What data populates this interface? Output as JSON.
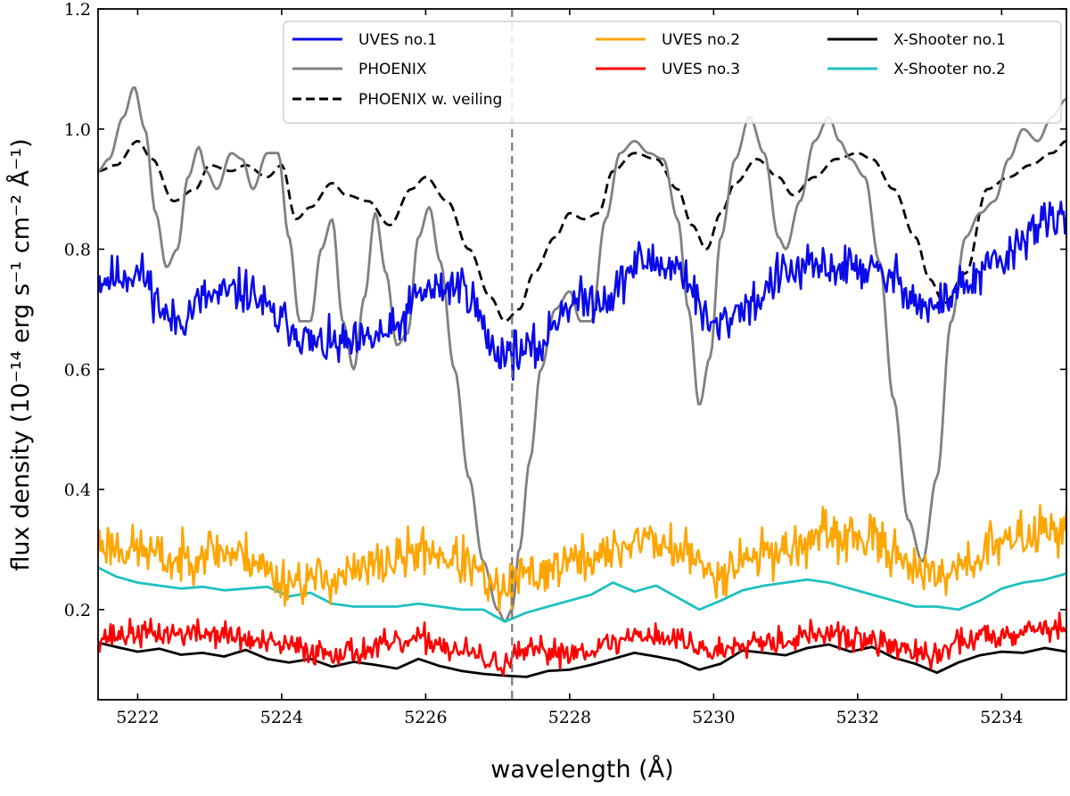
{
  "chart_data": {
    "type": "line",
    "xlabel": "wavelength (Å)",
    "ylabel": "flux density (10⁻¹⁴ erg s⁻¹ cm⁻² Å⁻¹)",
    "xlim": [
      5221.45,
      5234.9
    ],
    "ylim": [
      0.05,
      1.2
    ],
    "xticks": [
      5222,
      5224,
      5226,
      5228,
      5230,
      5232,
      5234
    ],
    "yticks": [
      0.2,
      0.4,
      0.6,
      0.8,
      1.0,
      1.2
    ],
    "ytick_labels": [
      "0.2",
      "0.4",
      "0.6",
      "0.8",
      "1.0",
      "1.2"
    ],
    "vline": {
      "x": 5227.2,
      "color": "#777777",
      "style": "dashed"
    },
    "legend": {
      "placement": "top-right",
      "columns": 3
    },
    "series": [
      {
        "name": "UVES no.1",
        "color": "#0a0aeb",
        "style": "solid",
        "noise": 0.028,
        "seed": 11,
        "x": [
          5221.45,
          5222.0,
          5222.5,
          5223.0,
          5223.5,
          5224.0,
          5224.5,
          5225.0,
          5225.5,
          5226.0,
          5226.5,
          5227.0,
          5227.5,
          5228.0,
          5228.5,
          5229.0,
          5229.5,
          5230.0,
          5230.5,
          5231.0,
          5231.5,
          5232.0,
          5232.5,
          5233.0,
          5233.5,
          5234.0,
          5234.5,
          5234.9
        ],
        "y": [
          0.75,
          0.76,
          0.68,
          0.72,
          0.73,
          0.68,
          0.64,
          0.64,
          0.66,
          0.73,
          0.74,
          0.63,
          0.63,
          0.71,
          0.72,
          0.78,
          0.77,
          0.67,
          0.71,
          0.76,
          0.77,
          0.77,
          0.75,
          0.7,
          0.74,
          0.78,
          0.84,
          0.85
        ]
      },
      {
        "name": "UVES no.2",
        "color": "#ffa500",
        "style": "solid",
        "noise": 0.03,
        "seed": 23,
        "x": [
          5221.45,
          5222.0,
          5222.5,
          5223.0,
          5223.5,
          5224.0,
          5224.5,
          5225.0,
          5225.5,
          5226.0,
          5226.5,
          5227.0,
          5227.5,
          5228.0,
          5228.5,
          5229.0,
          5229.5,
          5230.0,
          5230.5,
          5231.0,
          5231.5,
          5232.0,
          5232.5,
          5233.0,
          5233.5,
          5234.0,
          5234.5,
          5234.9
        ],
        "y": [
          0.31,
          0.3,
          0.28,
          0.3,
          0.29,
          0.25,
          0.25,
          0.26,
          0.28,
          0.3,
          0.28,
          0.23,
          0.26,
          0.28,
          0.29,
          0.32,
          0.3,
          0.26,
          0.29,
          0.3,
          0.32,
          0.32,
          0.3,
          0.25,
          0.28,
          0.31,
          0.33,
          0.34
        ]
      },
      {
        "name": "UVES no.3",
        "color": "#ff0000",
        "style": "solid",
        "noise": 0.017,
        "seed": 37,
        "x": [
          5221.45,
          5222.0,
          5223.0,
          5224.0,
          5224.5,
          5225.0,
          5225.5,
          5226.0,
          5226.5,
          5227.0,
          5227.5,
          5228.0,
          5228.5,
          5229.0,
          5229.5,
          5230.0,
          5230.5,
          5231.0,
          5231.5,
          5232.0,
          5232.5,
          5233.0,
          5233.5,
          5234.0,
          5234.5,
          5234.9
        ],
        "y": [
          0.155,
          0.16,
          0.16,
          0.14,
          0.13,
          0.13,
          0.14,
          0.15,
          0.13,
          0.11,
          0.13,
          0.13,
          0.14,
          0.16,
          0.15,
          0.13,
          0.15,
          0.15,
          0.16,
          0.15,
          0.14,
          0.12,
          0.15,
          0.16,
          0.17,
          0.17
        ]
      },
      {
        "name": "X-Shooter no.1",
        "color": "#000000",
        "style": "solid",
        "noise": 0,
        "seed": 0,
        "x": [
          5221.45,
          5221.7,
          5222.0,
          5222.3,
          5222.6,
          5222.9,
          5223.2,
          5223.5,
          5223.8,
          5224.1,
          5224.4,
          5224.7,
          5225.0,
          5225.3,
          5225.6,
          5225.9,
          5226.2,
          5226.5,
          5226.8,
          5227.1,
          5227.4,
          5227.7,
          5228.0,
          5228.3,
          5228.6,
          5228.9,
          5229.2,
          5229.5,
          5229.8,
          5230.1,
          5230.4,
          5230.7,
          5231.0,
          5231.3,
          5231.6,
          5231.9,
          5232.2,
          5232.5,
          5232.8,
          5233.1,
          5233.4,
          5233.7,
          5234.0,
          5234.3,
          5234.6,
          5234.9
        ],
        "y": [
          0.145,
          0.138,
          0.13,
          0.135,
          0.125,
          0.128,
          0.122,
          0.133,
          0.118,
          0.112,
          0.118,
          0.105,
          0.113,
          0.108,
          0.102,
          0.118,
          0.106,
          0.098,
          0.093,
          0.09,
          0.088,
          0.098,
          0.1,
          0.108,
          0.118,
          0.128,
          0.122,
          0.115,
          0.1,
          0.11,
          0.132,
          0.128,
          0.124,
          0.136,
          0.142,
          0.13,
          0.138,
          0.12,
          0.11,
          0.095,
          0.112,
          0.124,
          0.13,
          0.128,
          0.136,
          0.13
        ]
      },
      {
        "name": "X-Shooter no.2",
        "color": "#20c0c0",
        "style": "solid",
        "noise": 0,
        "seed": 0,
        "x": [
          5221.45,
          5221.7,
          5222.0,
          5222.3,
          5222.6,
          5222.9,
          5223.2,
          5223.5,
          5223.8,
          5224.1,
          5224.4,
          5224.7,
          5225.0,
          5225.3,
          5225.6,
          5225.9,
          5226.2,
          5226.5,
          5226.8,
          5227.1,
          5227.4,
          5227.7,
          5228.0,
          5228.3,
          5228.6,
          5228.9,
          5229.2,
          5229.5,
          5229.8,
          5230.1,
          5230.4,
          5230.7,
          5231.0,
          5231.3,
          5231.6,
          5231.9,
          5232.2,
          5232.5,
          5232.8,
          5233.1,
          5233.4,
          5233.7,
          5234.0,
          5234.3,
          5234.6,
          5234.9
        ],
        "y": [
          0.27,
          0.255,
          0.245,
          0.24,
          0.235,
          0.238,
          0.232,
          0.235,
          0.238,
          0.222,
          0.228,
          0.21,
          0.205,
          0.205,
          0.205,
          0.21,
          0.205,
          0.2,
          0.2,
          0.18,
          0.195,
          0.205,
          0.215,
          0.225,
          0.245,
          0.23,
          0.24,
          0.22,
          0.2,
          0.215,
          0.232,
          0.24,
          0.245,
          0.25,
          0.245,
          0.235,
          0.225,
          0.215,
          0.205,
          0.205,
          0.2,
          0.215,
          0.235,
          0.245,
          0.25,
          0.26
        ]
      },
      {
        "name": "PHOENIX",
        "color": "#808080",
        "style": "solid",
        "noise": 0,
        "seed": 0,
        "x": [
          5221.45,
          5221.6,
          5221.8,
          5221.95,
          5222.1,
          5222.25,
          5222.4,
          5222.55,
          5222.7,
          5222.85,
          5222.95,
          5223.1,
          5223.3,
          5223.45,
          5223.6,
          5223.8,
          5223.95,
          5224.1,
          5224.25,
          5224.4,
          5224.55,
          5224.7,
          5224.85,
          5225.0,
          5225.15,
          5225.3,
          5225.45,
          5225.6,
          5225.75,
          5225.9,
          5226.05,
          5226.2,
          5226.4,
          5226.6,
          5226.8,
          5227.0,
          5227.1,
          5227.2,
          5227.3,
          5227.45,
          5227.6,
          5227.8,
          5228.0,
          5228.15,
          5228.3,
          5228.5,
          5228.7,
          5228.9,
          5229.1,
          5229.3,
          5229.5,
          5229.65,
          5229.8,
          5229.95,
          5230.1,
          5230.3,
          5230.5,
          5230.7,
          5230.9,
          5231.0,
          5231.2,
          5231.4,
          5231.6,
          5231.75,
          5231.9,
          5232.1,
          5232.3,
          5232.5,
          5232.7,
          5232.9,
          5233.1,
          5233.3,
          5233.5,
          5233.7,
          5233.9,
          5234.1,
          5234.3,
          5234.5,
          5234.7,
          5234.9
        ],
        "y": [
          0.93,
          0.95,
          1.02,
          1.07,
          1.0,
          0.86,
          0.77,
          0.8,
          0.92,
          0.97,
          0.93,
          0.9,
          0.96,
          0.95,
          0.9,
          0.96,
          0.96,
          0.82,
          0.68,
          0.68,
          0.8,
          0.85,
          0.68,
          0.6,
          0.72,
          0.86,
          0.76,
          0.64,
          0.66,
          0.82,
          0.87,
          0.78,
          0.6,
          0.42,
          0.28,
          0.2,
          0.18,
          0.2,
          0.3,
          0.45,
          0.6,
          0.7,
          0.73,
          0.68,
          0.68,
          0.85,
          0.96,
          0.98,
          0.96,
          0.95,
          0.85,
          0.7,
          0.54,
          0.62,
          0.82,
          0.95,
          1.02,
          0.96,
          0.82,
          0.8,
          0.88,
          0.98,
          1.02,
          0.98,
          0.95,
          0.92,
          0.78,
          0.55,
          0.35,
          0.28,
          0.42,
          0.68,
          0.82,
          0.86,
          0.88,
          0.95,
          1.0,
          0.98,
          1.02,
          1.05
        ]
      },
      {
        "name": "PHOENIX w. veiling",
        "color": "#000000",
        "style": "dashed",
        "noise": 0,
        "seed": 0,
        "x": [
          5221.45,
          5221.7,
          5222.0,
          5222.2,
          5222.5,
          5222.8,
          5223.0,
          5223.3,
          5223.5,
          5223.8,
          5224.0,
          5224.2,
          5224.4,
          5224.7,
          5224.9,
          5225.2,
          5225.5,
          5225.8,
          5226.0,
          5226.3,
          5226.6,
          5226.9,
          5227.1,
          5227.3,
          5227.5,
          5227.8,
          5228.0,
          5228.2,
          5228.4,
          5228.6,
          5228.9,
          5229.2,
          5229.5,
          5229.7,
          5229.9,
          5230.1,
          5230.3,
          5230.6,
          5230.9,
          5231.1,
          5231.4,
          5231.7,
          5232.0,
          5232.2,
          5232.5,
          5232.8,
          5233.0,
          5233.2,
          5233.5,
          5233.8,
          5234.1,
          5234.4,
          5234.7,
          5234.9
        ],
        "y": [
          0.93,
          0.94,
          0.98,
          0.95,
          0.88,
          0.9,
          0.94,
          0.93,
          0.94,
          0.92,
          0.94,
          0.85,
          0.87,
          0.91,
          0.89,
          0.88,
          0.84,
          0.9,
          0.92,
          0.88,
          0.8,
          0.72,
          0.68,
          0.7,
          0.76,
          0.82,
          0.86,
          0.85,
          0.86,
          0.93,
          0.96,
          0.95,
          0.9,
          0.84,
          0.8,
          0.86,
          0.91,
          0.95,
          0.92,
          0.89,
          0.92,
          0.95,
          0.96,
          0.95,
          0.9,
          0.82,
          0.75,
          0.71,
          0.76,
          0.9,
          0.92,
          0.94,
          0.96,
          0.98
        ]
      }
    ]
  }
}
